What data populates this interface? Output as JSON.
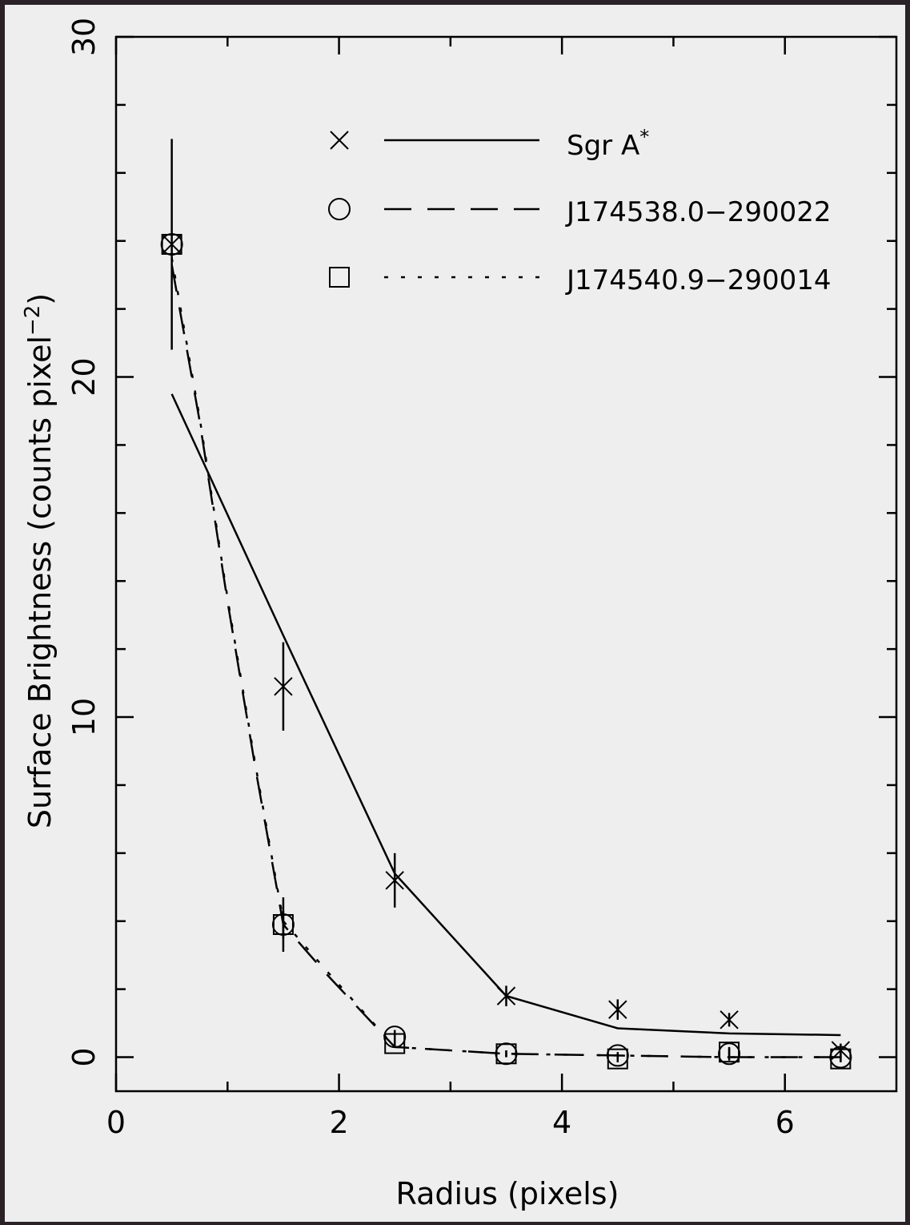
{
  "chart_data": {
    "type": "line",
    "title": "",
    "xlabel": "Radius (pixels)",
    "ylabel_main": "Surface Brightness (counts pixel",
    "ylabel_sup": "−2",
    "ylabel_close": ")",
    "xlim": [
      0,
      7
    ],
    "ylim": [
      -1,
      30
    ],
    "x_ticks": [
      0,
      2,
      4,
      6
    ],
    "x_tick_labels": [
      "0",
      "2",
      "4",
      "6"
    ],
    "x_minor_ticks": [
      1,
      3,
      5
    ],
    "y_ticks": [
      0,
      10,
      20,
      30
    ],
    "y_tick_labels": [
      "0",
      "10",
      "20",
      "30"
    ],
    "y_minor_ticks": [
      2,
      4,
      6,
      8,
      12,
      14,
      16,
      18,
      22,
      24,
      26,
      28
    ],
    "grid": false,
    "legend_position": "top-right",
    "series": [
      {
        "name": "Sgr A",
        "name_sup": "*",
        "marker": "x",
        "line_style": "solid",
        "points": [
          {
            "x": 0.5,
            "y": 23.9,
            "yerr": 3.1
          },
          {
            "x": 1.5,
            "y": 10.9,
            "yerr": 1.3
          },
          {
            "x": 2.5,
            "y": 5.2,
            "yerr": 0.8
          },
          {
            "x": 3.5,
            "y": 1.8,
            "yerr": 0.3
          },
          {
            "x": 4.5,
            "y": 1.4,
            "yerr": 0.3
          },
          {
            "x": 5.5,
            "y": 1.1,
            "yerr": 0.2
          },
          {
            "x": 6.5,
            "y": 0.2,
            "yerr": 0.2
          }
        ],
        "model": [
          {
            "x": 0.5,
            "y": 19.5
          },
          {
            "x": 1.5,
            "y": 12.4
          },
          {
            "x": 2.5,
            "y": 5.4
          },
          {
            "x": 3.5,
            "y": 1.8
          },
          {
            "x": 4.5,
            "y": 0.85
          },
          {
            "x": 5.5,
            "y": 0.7
          },
          {
            "x": 6.5,
            "y": 0.65
          }
        ]
      },
      {
        "name": "J174538.0−290022",
        "marker": "circle",
        "line_style": "dashed",
        "points": [
          {
            "x": 0.5,
            "y": 23.9,
            "yerr": 0
          },
          {
            "x": 1.5,
            "y": 3.9,
            "yerr": 0.8
          },
          {
            "x": 2.5,
            "y": 0.6,
            "yerr": 0.2
          },
          {
            "x": 3.5,
            "y": 0.1,
            "yerr": 0.1
          },
          {
            "x": 4.5,
            "y": 0.05,
            "yerr": 0.1
          },
          {
            "x": 5.5,
            "y": 0.1,
            "yerr": 0.2
          },
          {
            "x": 6.5,
            "y": 0.0,
            "yerr": 0.1
          }
        ],
        "model": [
          {
            "x": 0.5,
            "y": 23.3
          },
          {
            "x": 0.75,
            "y": 18.7
          },
          {
            "x": 1.0,
            "y": 13.4
          },
          {
            "x": 1.25,
            "y": 8.5
          },
          {
            "x": 1.5,
            "y": 3.9
          },
          {
            "x": 1.9,
            "y": 2.4
          },
          {
            "x": 2.5,
            "y": 0.3
          },
          {
            "x": 3.5,
            "y": 0.1
          },
          {
            "x": 4.5,
            "y": 0.05
          },
          {
            "x": 5.5,
            "y": 0.0
          },
          {
            "x": 6.5,
            "y": 0.0
          }
        ]
      },
      {
        "name": "J174540.9−290014",
        "marker": "square",
        "line_style": "dotted",
        "points": [
          {
            "x": 0.5,
            "y": 23.9,
            "yerr": 0
          },
          {
            "x": 1.5,
            "y": 3.9,
            "yerr": 0.4
          },
          {
            "x": 2.5,
            "y": 0.4,
            "yerr": 0.1
          },
          {
            "x": 3.5,
            "y": 0.1,
            "yerr": 0.1
          },
          {
            "x": 4.5,
            "y": -0.05,
            "yerr": 0.1
          },
          {
            "x": 5.5,
            "y": 0.15,
            "yerr": 0.1
          },
          {
            "x": 6.5,
            "y": -0.05,
            "yerr": 0.1
          }
        ],
        "model": [
          {
            "x": 0.5,
            "y": 23.5
          },
          {
            "x": 0.75,
            "y": 18.8
          },
          {
            "x": 1.0,
            "y": 13.5
          },
          {
            "x": 1.25,
            "y": 8.6
          },
          {
            "x": 1.5,
            "y": 4.0
          },
          {
            "x": 1.9,
            "y": 2.5
          },
          {
            "x": 2.5,
            "y": 0.3
          },
          {
            "x": 3.5,
            "y": 0.1
          },
          {
            "x": 4.5,
            "y": 0.05
          },
          {
            "x": 5.5,
            "y": 0.0
          },
          {
            "x": 6.5,
            "y": 0.0
          }
        ]
      }
    ]
  }
}
